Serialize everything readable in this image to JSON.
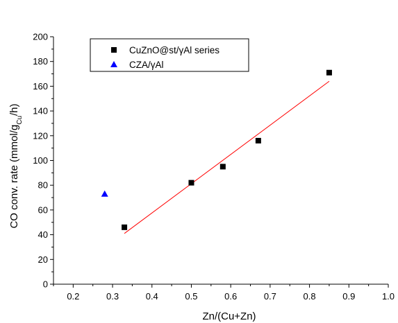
{
  "chart_data": {
    "type": "scatter",
    "title": "",
    "xlabel": "Zn/(Cu+Zn)",
    "ylabel_parts": [
      "CO conv. rate (mmol/g",
      "Cu",
      "/h)"
    ],
    "xlim": [
      0.15,
      1.0
    ],
    "ylim": [
      0,
      200
    ],
    "x_ticks": [
      0.2,
      0.3,
      0.4,
      0.5,
      0.6,
      0.7,
      0.8,
      0.9,
      1.0
    ],
    "x_tick_labels": [
      "0.2",
      "0.3",
      "0.4",
      "0.5",
      "0.6",
      "0.7",
      "0.8",
      "0.9",
      "1.0"
    ],
    "y_ticks": [
      0,
      20,
      40,
      60,
      80,
      100,
      120,
      140,
      160,
      180,
      200
    ],
    "y_tick_labels": [
      "0",
      "20",
      "40",
      "60",
      "80",
      "100",
      "120",
      "140",
      "160",
      "180",
      "200"
    ],
    "grid": false,
    "legend_position": "top-left",
    "series": [
      {
        "name": "CuZnO@st/γAl series",
        "marker": "square",
        "color": "#000000",
        "x": [
          0.33,
          0.5,
          0.58,
          0.67,
          0.85
        ],
        "y": [
          46,
          82,
          95,
          116,
          171
        ]
      },
      {
        "name": "CZA/γAl",
        "marker": "triangle",
        "color": "#0000ff",
        "x": [
          0.28
        ],
        "y": [
          73
        ]
      }
    ],
    "fit_line": {
      "color": "#ff0000",
      "x": [
        0.33,
        0.85
      ],
      "y": [
        41,
        164
      ]
    }
  }
}
